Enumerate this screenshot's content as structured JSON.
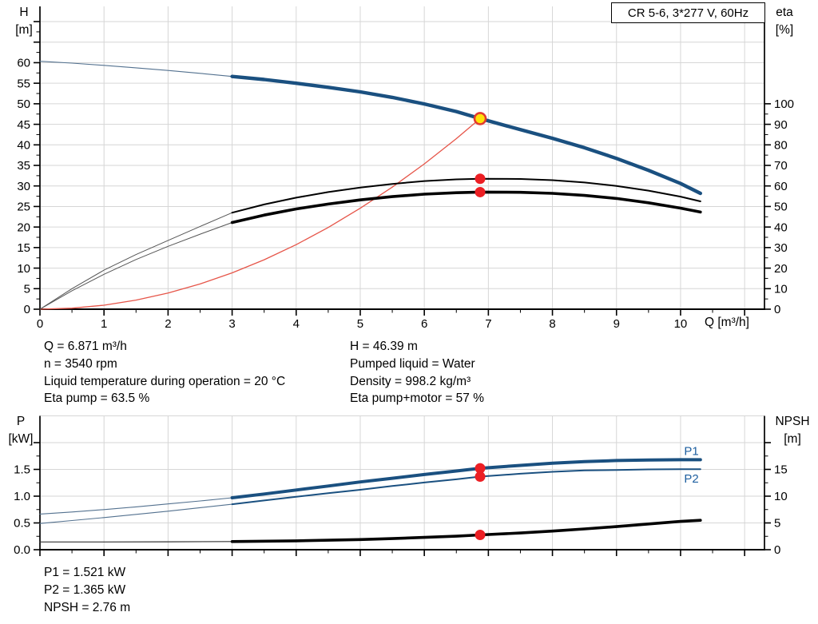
{
  "colors": {
    "curve_blue": "#1a5080",
    "thin_blue": "#53718f",
    "curve_black": "#000000",
    "thin_black": "#555555",
    "system_red": "#e65549",
    "dot_red": "#ec1f24",
    "duty_fill": "#ffe20a",
    "duty_ring": "#e23b2e",
    "grid": "#d6d6d6",
    "curve_label": "#1e5fa0",
    "axis": "#000000"
  },
  "info_top": {
    "left": [
      "Q = 6.871 m³/h",
      "n = 3540 rpm",
      "Liquid temperature during operation = 20 °C",
      "Eta pump = 63.5 %"
    ],
    "right": [
      "H = 46.39 m",
      "Pumped liquid = Water",
      "Density = 998.2 kg/m³",
      "Eta pump+motor = 57 %"
    ]
  },
  "info_bottom": [
    "P1 = 1.521 kW",
    "P2 = 1.365 kW",
    "NPSH = 2.76 m"
  ],
  "chart_data": [
    {
      "type": "line",
      "title": "CR 5-6, 3*277 V, 60Hz",
      "x_axis": {
        "label": "Q [m³/h]",
        "range": [
          0,
          11.31
        ],
        "major_step": 1,
        "minor_step": 0.5,
        "tick_max": 11,
        "label_max": 10,
        "decimals": 0
      },
      "y_left": {
        "label": "H",
        "unit": "[m]",
        "range": [
          0,
          73.7
        ],
        "major_step": 5,
        "minor_step": 2.5,
        "tick_max": 70,
        "label_max": 60,
        "grid_max": 70,
        "decimals": 0
      },
      "y_right": {
        "label": "eta",
        "unit": "[%]",
        "range": [
          0,
          147.4
        ],
        "major_step": 10,
        "minor_step": 5,
        "tick_max": 100,
        "label_max": 100,
        "decimals": 0
      },
      "series": [
        {
          "name": "system-curve",
          "axis": "left",
          "color": "#e65549",
          "width": 1.3,
          "points": [
            [
              0,
              0
            ],
            [
              0.5,
              0.25
            ],
            [
              1,
              0.98
            ],
            [
              1.5,
              2.21
            ],
            [
              2,
              3.93
            ],
            [
              2.5,
              6.14
            ],
            [
              3,
              8.84
            ],
            [
              3.5,
              12.04
            ],
            [
              4,
              15.72
            ],
            [
              4.5,
              19.9
            ],
            [
              5,
              24.57
            ],
            [
              5.5,
              29.72
            ],
            [
              6,
              35.37
            ],
            [
              6.5,
              41.51
            ],
            [
              6.871,
              46.39
            ]
          ]
        },
        {
          "name": "eta-pump-curve-thin",
          "axis": "right",
          "color": "#555555",
          "width": 1,
          "points": [
            [
              0,
              0
            ],
            [
              0.5,
              10
            ],
            [
              1,
              19
            ],
            [
              1.5,
              26.6
            ],
            [
              2,
              33.5
            ],
            [
              2.5,
              40.3
            ],
            [
              3,
              47
            ]
          ]
        },
        {
          "name": "eta-pump-motor-curve-thin",
          "axis": "right",
          "color": "#555555",
          "width": 1,
          "points": [
            [
              0,
              0
            ],
            [
              0.5,
              9
            ],
            [
              1,
              17
            ],
            [
              1.5,
              24.2
            ],
            [
              2,
              30.6
            ],
            [
              2.5,
              36.5
            ],
            [
              3,
              42.2
            ]
          ]
        },
        {
          "name": "eta-pump-curve",
          "axis": "right",
          "color": "#000000",
          "width": 2,
          "points": [
            [
              3,
              47
            ],
            [
              3.5,
              51
            ],
            [
              4,
              54.3
            ],
            [
              4.5,
              57
            ],
            [
              5,
              59.2
            ],
            [
              5.5,
              61
            ],
            [
              6,
              62.4
            ],
            [
              6.5,
              63.2
            ],
            [
              6.871,
              63.5
            ],
            [
              7.5,
              63.4
            ],
            [
              8,
              62.8
            ],
            [
              8.5,
              61.7
            ],
            [
              9,
              60
            ],
            [
              9.5,
              57.7
            ],
            [
              10,
              54.8
            ],
            [
              10.31,
              52.5
            ]
          ]
        },
        {
          "name": "eta-pump-motor-curve",
          "axis": "right",
          "color": "#000000",
          "width": 3.6,
          "points": [
            [
              3,
              42.2
            ],
            [
              3.5,
              45.8
            ],
            [
              4,
              48.8
            ],
            [
              4.5,
              51.2
            ],
            [
              5,
              53.2
            ],
            [
              5.5,
              54.8
            ],
            [
              6,
              56
            ],
            [
              6.5,
              56.7
            ],
            [
              6.871,
              57
            ],
            [
              7.5,
              56.9
            ],
            [
              8,
              56.4
            ],
            [
              8.5,
              55.4
            ],
            [
              9,
              53.9
            ],
            [
              9.5,
              51.8
            ],
            [
              10,
              49.2
            ],
            [
              10.31,
              47.3
            ]
          ]
        },
        {
          "name": "head-curve-thin",
          "axis": "left",
          "color": "#53718f",
          "width": 1.1,
          "points": [
            [
              0,
              60.35
            ],
            [
              0.5,
              59.9
            ],
            [
              1,
              59.35
            ],
            [
              1.5,
              58.75
            ],
            [
              2,
              58.1
            ],
            [
              2.5,
              57.4
            ],
            [
              3,
              56.65
            ]
          ]
        },
        {
          "name": "head-curve",
          "axis": "left",
          "color": "#1a5080",
          "width": 4.4,
          "points": [
            [
              3,
              56.65
            ],
            [
              3.5,
              55.9
            ],
            [
              4,
              55.0
            ],
            [
              4.5,
              54.0
            ],
            [
              5,
              52.9
            ],
            [
              5.5,
              51.55
            ],
            [
              6,
              49.95
            ],
            [
              6.5,
              48.1
            ],
            [
              6.871,
              46.39
            ],
            [
              7.5,
              43.7
            ],
            [
              8,
              41.6
            ],
            [
              8.5,
              39.3
            ],
            [
              9,
              36.7
            ],
            [
              9.5,
              33.8
            ],
            [
              10,
              30.6
            ],
            [
              10.31,
              28.2
            ]
          ]
        }
      ],
      "markers": [
        {
          "name": "duty-point",
          "style": "duty",
          "axis": "left",
          "q": 6.871,
          "v": 46.39
        },
        {
          "name": "eta-pump-duty-dot",
          "style": "dot",
          "axis": "right",
          "q": 6.871,
          "v": 63.5
        },
        {
          "name": "eta-pump-motor-duty-dot",
          "style": "dot",
          "axis": "right",
          "q": 6.871,
          "v": 57
        }
      ],
      "curve_labels": []
    },
    {
      "type": "line",
      "title": "",
      "x_axis": {
        "label": "",
        "range": [
          0,
          11.31
        ],
        "major_step": 1,
        "minor_step": 0.5,
        "tick_max": 11,
        "label_max": -1,
        "decimals": 0
      },
      "y_left": {
        "label": "P",
        "unit": "[kW]",
        "range": [
          0,
          2.5
        ],
        "major_step": 0.5,
        "minor_step": 0.25,
        "tick_max": 2.0,
        "label_max": 1.5,
        "grid_max": 2.5,
        "decimals": 1
      },
      "y_right": {
        "label": "NPSH",
        "unit": "[m]",
        "range": [
          0,
          25
        ],
        "major_step": 5,
        "minor_step": 2.5,
        "tick_max": 20,
        "label_max": 15,
        "decimals": 0
      },
      "series": [
        {
          "name": "npsh-curve-thin",
          "axis": "right",
          "color": "#333333",
          "width": 1.2,
          "points": [
            [
              0,
              1.45
            ],
            [
              1,
              1.45
            ],
            [
              2,
              1.48
            ],
            [
              3,
              1.52
            ]
          ]
        },
        {
          "name": "npsh-curve",
          "axis": "right",
          "color": "#000000",
          "width": 3.6,
          "points": [
            [
              3,
              1.52
            ],
            [
              4,
              1.66
            ],
            [
              5,
              1.9
            ],
            [
              5.5,
              2.08
            ],
            [
              6,
              2.3
            ],
            [
              6.5,
              2.52
            ],
            [
              6.871,
              2.76
            ],
            [
              7.5,
              3.12
            ],
            [
              8,
              3.48
            ],
            [
              8.5,
              3.88
            ],
            [
              9,
              4.32
            ],
            [
              9.5,
              4.8
            ],
            [
              10,
              5.28
            ],
            [
              10.31,
              5.5
            ]
          ]
        },
        {
          "name": "p2-curve-thin",
          "axis": "left",
          "color": "#53718f",
          "width": 1.1,
          "points": [
            [
              0,
              0.49
            ],
            [
              0.5,
              0.545
            ],
            [
              1,
              0.6
            ],
            [
              1.5,
              0.66
            ],
            [
              2,
              0.72
            ],
            [
              2.5,
              0.785
            ],
            [
              3,
              0.85
            ]
          ]
        },
        {
          "name": "p2-curve",
          "axis": "left",
          "color": "#1a5080",
          "width": 2,
          "points": [
            [
              3,
              0.85
            ],
            [
              3.5,
              0.92
            ],
            [
              4,
              0.99
            ],
            [
              4.5,
              1.055
            ],
            [
              5,
              1.12
            ],
            [
              5.5,
              1.19
            ],
            [
              6,
              1.255
            ],
            [
              6.5,
              1.315
            ],
            [
              6.871,
              1.365
            ],
            [
              7.5,
              1.42
            ],
            [
              8,
              1.455
            ],
            [
              8.5,
              1.48
            ],
            [
              9,
              1.49
            ],
            [
              9.5,
              1.5
            ],
            [
              10,
              1.505
            ],
            [
              10.31,
              1.505
            ]
          ]
        },
        {
          "name": "p1-curve-thin",
          "axis": "left",
          "color": "#53718f",
          "width": 1.1,
          "points": [
            [
              0,
              0.665
            ],
            [
              0.5,
              0.705
            ],
            [
              1,
              0.75
            ],
            [
              1.5,
              0.8
            ],
            [
              2,
              0.855
            ],
            [
              2.5,
              0.91
            ],
            [
              3,
              0.97
            ]
          ]
        },
        {
          "name": "p1-curve",
          "axis": "left",
          "color": "#1a5080",
          "width": 4,
          "points": [
            [
              3,
              0.97
            ],
            [
              3.5,
              1.04
            ],
            [
              4,
              1.115
            ],
            [
              4.5,
              1.19
            ],
            [
              5,
              1.265
            ],
            [
              5.5,
              1.335
            ],
            [
              6,
              1.405
            ],
            [
              6.5,
              1.47
            ],
            [
              6.871,
              1.521
            ],
            [
              7.5,
              1.575
            ],
            [
              8,
              1.615
            ],
            [
              8.5,
              1.645
            ],
            [
              9,
              1.665
            ],
            [
              9.5,
              1.675
            ],
            [
              10,
              1.68
            ],
            [
              10.31,
              1.68
            ]
          ]
        }
      ],
      "markers": [
        {
          "name": "p1-duty-dot",
          "style": "dot",
          "axis": "left",
          "q": 6.871,
          "v": 1.521
        },
        {
          "name": "p2-duty-dot",
          "style": "dot",
          "axis": "left",
          "q": 6.871,
          "v": 1.365
        },
        {
          "name": "npsh-duty-dot",
          "style": "dot",
          "axis": "right",
          "q": 6.871,
          "v": 2.76
        }
      ],
      "curve_labels": [
        {
          "text": "P1",
          "q": 10.17,
          "v": 1.84
        },
        {
          "text": "P2",
          "q": 10.17,
          "v": 1.33
        }
      ]
    }
  ]
}
